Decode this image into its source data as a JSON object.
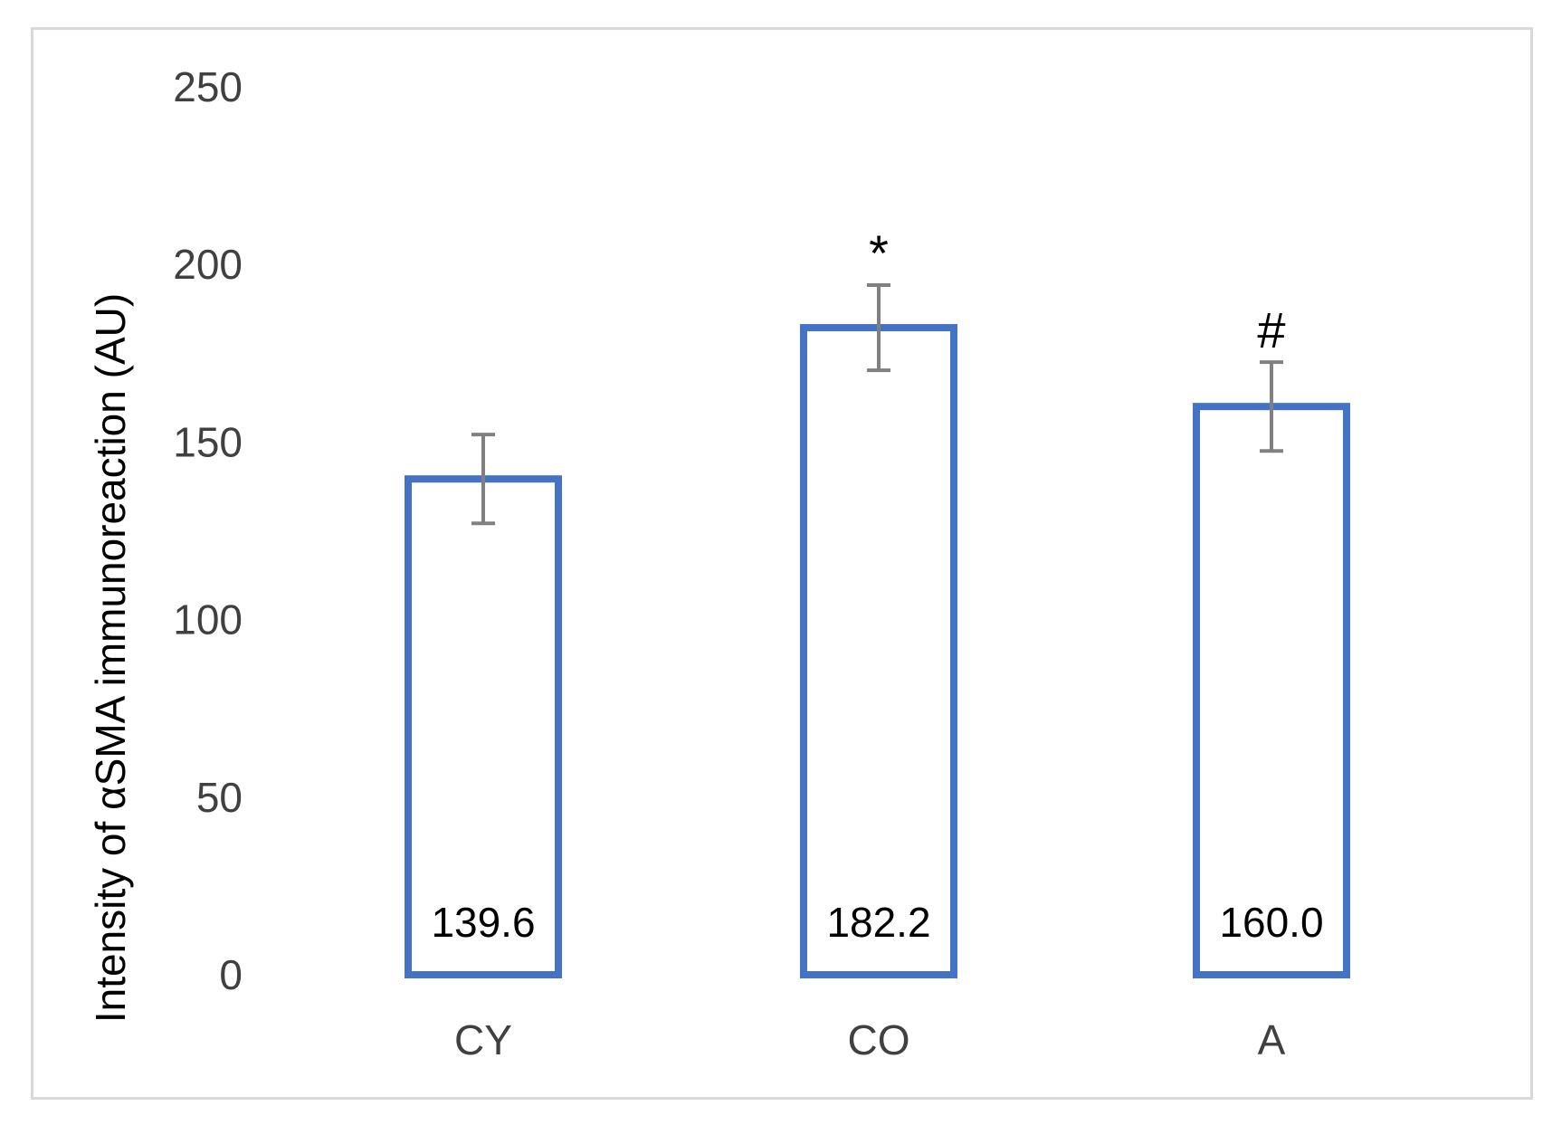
{
  "chart_data": {
    "type": "bar",
    "categories": [
      "CY",
      "CO",
      "A"
    ],
    "values": [
      139.6,
      182.2,
      160.0
    ],
    "value_labels": [
      "139.6",
      "182.2",
      "160.0"
    ],
    "error": [
      12.5,
      12.0,
      12.5
    ],
    "annotations": [
      "",
      "*",
      "#"
    ],
    "title": "",
    "xlabel": "",
    "ylabel": "Intensity of αSMA immunoreaction (AU)",
    "ylim": [
      0,
      250
    ],
    "yticks": [
      0,
      50,
      100,
      150,
      200,
      250
    ],
    "grid": false,
    "legend": "none",
    "bar_style": "outline",
    "colors": {
      "bar_outline": "#4472c4",
      "bar_fill": "#ffffff",
      "error_bar": "#808080",
      "frame": "#d9d9d9"
    }
  }
}
